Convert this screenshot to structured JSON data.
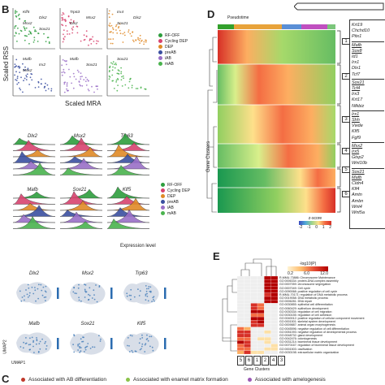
{
  "panels": {
    "B": {
      "letter": "B",
      "y_label": "Scaled RSS",
      "x_label": "Scaled MRA",
      "legend": [
        "RF-OFF",
        "Cycling DEP",
        "DEP",
        "preAB",
        "iAB",
        "mAB"
      ],
      "legend_colors": [
        "#2e9e3e",
        "#d8436f",
        "#e08a26",
        "#3a4fa0",
        "#9a6fc7",
        "#4ab34e"
      ],
      "subplot_labels": [
        [
          "Klf5",
          "Dlx2",
          "Msx2",
          "Sox21"
        ],
        [
          "Trp63",
          "Msx2",
          "Dlx2"
        ],
        [
          "Irx4",
          "Dlx2",
          "Sox21"
        ],
        [
          "Mafb",
          "Irx2",
          "Msx2"
        ],
        [
          "Mafb",
          "Sox21"
        ],
        [
          "Sox21"
        ]
      ]
    },
    "ridge": {
      "gene_labels": [
        "Dlx2",
        "Msx2",
        "Trp63",
        "Mafb",
        "Sox21",
        "Klf5"
      ],
      "legend": [
        "RF-OFF",
        "Cycling DEP",
        "DEP",
        "preAB",
        "iAB",
        "mAB"
      ],
      "x_label": "Expression level"
    },
    "umap": {
      "gene_labels": [
        "Dlx2",
        "Msx2",
        "Trp63",
        "Mafb",
        "Sox21",
        "Klf5"
      ],
      "y_axis": "UMAP2",
      "x_axis": "UMAP1"
    },
    "D": {
      "letter": "D",
      "top_label": "Pseudotime",
      "y_label": "Gene Clusters",
      "cluster_numbers": [
        "1",
        "2",
        "3",
        "4",
        "5",
        "6"
      ],
      "gene_lists": [
        [
          "Krt19",
          "Chchd10",
          "Pitx1"
        ],
        [
          "Mafb",
          "Sox8",
          "Id1",
          "Irx1",
          "Dlx1",
          "Tcf7"
        ],
        [
          "Sox21",
          "Tcf4",
          "Irx3",
          "Krt17",
          "Nfkbiz"
        ],
        [
          "Irx1",
          "Shh",
          "Vwde",
          "Klf5",
          "Fgf9"
        ],
        [
          "Msx2",
          "Irx5",
          "Gtsp2",
          "Wnt10b"
        ],
        [
          "Sox21",
          "Mafb",
          "Cldn4",
          "Klf4",
          "Amtn",
          "Ambn",
          "Wnt4",
          "Wnt5a"
        ]
      ],
      "colorbar_title": "z-score",
      "colorbar_ticks": [
        "-2",
        "-1",
        "0",
        "1",
        "2"
      ]
    },
    "E": {
      "letter": "E",
      "colorbar_title": "-log10(P)",
      "colorbar_ticks": [
        "0.2",
        "6.0",
        "12.0"
      ],
      "go_terms": [
        "R-MMU-73886: Chromosome Maintenance",
        "GO:0006334: protein-DNA complex assembly",
        "GO:0007059: chromosome segregation",
        "GO:0007049: Cell cycle",
        "GO:0090068: positive regulation of cell cycle",
        "R-MMU-70171: regulation of DNA metabolic process",
        "GO:0019058: DNA metabolic process",
        "GO:0006281: DNA repair",
        "GO:0030855: epithelial cell differentiation",
        "GO:0060429: epithelium development",
        "GO:0030334: regulation of cell migration",
        "GO:0030155: regulation of cell adhesion",
        "GO:0040012: positive regulation of cellular component movement",
        "GO:0001501: skeletal system development",
        "GO:0009887: animal organ morphogenesis",
        "GO:0045596: negative regulation of cell differentiation",
        "GO:0051093: negative regulation of developmental process",
        "GO:0048732: gland development",
        "GO:0042476: odontogenesis",
        "GO:0031214: biomineral tissue development",
        "GO:0070167: regulation of biomineral tissue development",
        "GO:0001503: ossification",
        "GO:0030198: extracellular matrix organization"
      ],
      "x_label": "Gene Clusters",
      "cluster_order": [
        "5",
        "6",
        "1",
        "2",
        "4",
        "3"
      ]
    },
    "C": {
      "letter": "C",
      "items": [
        {
          "label": "Associated with AB differentiation",
          "color": "#c0392b"
        },
        {
          "label": "Associated with enamel matrix formation",
          "color": "#8bc34a"
        },
        {
          "label": "Associated with amelogenesis",
          "color": "#9b59b6"
        }
      ]
    }
  }
}
